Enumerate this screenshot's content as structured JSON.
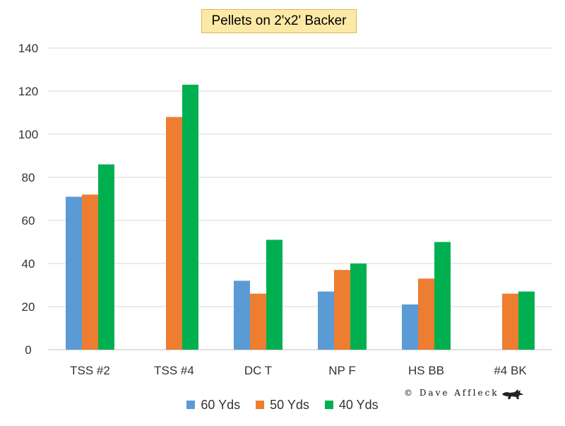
{
  "chart_data": {
    "type": "bar",
    "title": "Pellets on 2'x2' Backer",
    "xlabel": "",
    "ylabel": "",
    "ylim": [
      0,
      140
    ],
    "yticks": [
      0,
      20,
      40,
      60,
      80,
      100,
      120,
      140
    ],
    "grid": true,
    "legend_position": "bottom",
    "categories": [
      "TSS #2",
      "TSS #4",
      "DC T",
      "NP F",
      "HS BB",
      "#4 BK"
    ],
    "series": [
      {
        "name": "60 Yds",
        "color": "#5b9bd5",
        "values": [
          71,
          null,
          32,
          27,
          21,
          null
        ]
      },
      {
        "name": "50 Yds",
        "color": "#ed7d31",
        "values": [
          72,
          108,
          26,
          37,
          33,
          26
        ]
      },
      {
        "name": "40 Yds",
        "color": "#00b050",
        "values": [
          86,
          123,
          51,
          40,
          50,
          27
        ]
      }
    ]
  },
  "watermark": {
    "text": "© Dave Affleck",
    "icon": "fox-icon"
  }
}
